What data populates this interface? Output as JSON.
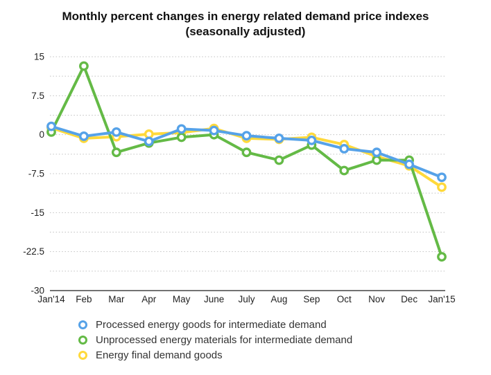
{
  "title": {
    "line1": "Monthly percent changes in energy related demand price indexes",
    "line2": "(seasonally adjusted)"
  },
  "chart_data": {
    "type": "line",
    "categories": [
      "Jan'14",
      "Feb",
      "Mar",
      "Apr",
      "May",
      "June",
      "July",
      "Aug",
      "Sep",
      "Oct",
      "Nov",
      "Dec",
      "Jan'15"
    ],
    "series": [
      {
        "name": "Processed energy goods for intermediate demand",
        "color": "#56a2e8",
        "values": [
          1.6,
          -0.3,
          0.5,
          -1.3,
          1.1,
          0.8,
          -0.2,
          -0.7,
          -1.1,
          -2.7,
          -3.4,
          -5.7,
          -8.2
        ]
      },
      {
        "name": "Unprocessed energy materials for intermediate demand",
        "color": "#64ba46",
        "values": [
          0.5,
          13.2,
          -3.4,
          -1.6,
          -0.5,
          0.0,
          -3.4,
          -4.9,
          -2.0,
          -6.9,
          -4.9,
          -4.9,
          -23.5
        ]
      },
      {
        "name": "Energy final demand goods",
        "color": "#ffd93b",
        "values": [
          1.3,
          -0.7,
          -0.4,
          0.1,
          0.4,
          1.2,
          -0.7,
          -0.9,
          -0.5,
          -1.9,
          -4.2,
          -6.0,
          -10.1
        ]
      }
    ],
    "title": "Monthly percent changes in energy related demand price indexes (seasonally adjusted)",
    "xlabel": "",
    "ylabel": "",
    "ylim": [
      -30,
      15
    ],
    "yticks_labeled": [
      15,
      7.5,
      0,
      -7.5,
      -15,
      -22.5,
      -30
    ],
    "grid_step": 3.75,
    "grid": "dotted-horizontal",
    "legend_position": "bottom-left",
    "gridline_color": "#c0c0c0",
    "axis_line_color": "#444444"
  }
}
